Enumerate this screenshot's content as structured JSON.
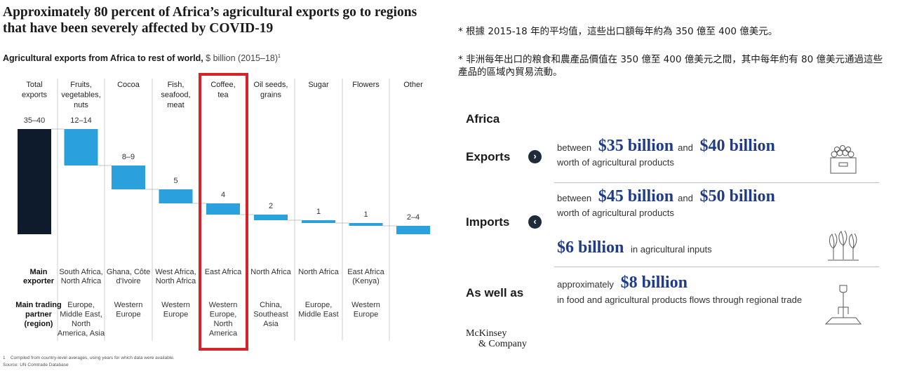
{
  "title": "Approximately 80 percent of Africa’s agricultural exports go to regions that have been severely affected by COVID-19",
  "subtitle_bold": "Agricultural exports from Africa to rest of world,",
  "subtitle_unit": "$ billion (2015–18)",
  "subtitle_sup": "1",
  "chart_data": {
    "type": "bar",
    "subtype": "waterfall",
    "categories": [
      "Total exports",
      "Fruits, vegetables, nuts",
      "Cocoa",
      "Fish, seafood, meat",
      "Coffee, tea",
      "Oil seeds, grains",
      "Sugar",
      "Flowers",
      "Other"
    ],
    "category_lines": [
      [
        "Total",
        "exports"
      ],
      [
        "Fruits,",
        "vegetables,",
        "nuts"
      ],
      [
        "Cocoa"
      ],
      [
        "Fish,",
        "seafood,",
        "meat"
      ],
      [
        "Coffee,",
        "tea"
      ],
      [
        "Oil seeds,",
        "grains"
      ],
      [
        "Sugar"
      ],
      [
        "Flowers"
      ],
      [
        "Other"
      ]
    ],
    "value_labels": [
      "35–40",
      "12–14",
      "8–9",
      "5",
      "4",
      "2",
      "1",
      "1",
      "2–4"
    ],
    "values": [
      37.5,
      13,
      8.5,
      5,
      4,
      2,
      1,
      1,
      3
    ],
    "highlighted_category": "Coffee, tea",
    "colors": {
      "total": "#0e1b2c",
      "segment": "#2aa0dc",
      "highlight_box": "#d7232a"
    },
    "main_exporter_label": [
      "Main",
      "exporter"
    ],
    "main_exporter": [
      [],
      [
        "South Africa,",
        "North Africa"
      ],
      [
        "Ghana, Côte",
        "d'Ivoire"
      ],
      [
        "West Africa,",
        "North Africa"
      ],
      [
        "East Africa"
      ],
      [
        "North Africa"
      ],
      [
        "North Africa"
      ],
      [
        "East Africa",
        "(Kenya)"
      ],
      []
    ],
    "main_partner_label": [
      "Main trading",
      "partner",
      "(region)"
    ],
    "main_partner": [
      [],
      [
        "Europe,",
        "Middle East,",
        "North",
        "America, Asia"
      ],
      [
        "Western",
        "Europe"
      ],
      [
        "Western",
        "Europe"
      ],
      [
        "Western",
        "Europe,",
        "North",
        "America"
      ],
      [
        "China,",
        "Southeast",
        "Asia"
      ],
      [
        "Europe,",
        "Middle East"
      ],
      [
        "Western",
        "Europe"
      ],
      []
    ]
  },
  "footnote_num": "1",
  "footnote": "Compiled from country-level averages, using years for which data were available.",
  "source": "Source: UN Comtrade Database",
  "notes": [
    "* 根據 2015-18 年的平均值，這些出口額每年約為 350 億至 400 億美元。",
    "* 非洲每年出口的粮食和農產品價值在 350 億至 400 億美元之間，其中每年約有 80 億美元通過這些產品的區域內貿易流動。"
  ],
  "infographic": {
    "heading": "Africa",
    "exports": {
      "label": "Exports",
      "pre": "between",
      "value1": "$35 billion",
      "mid": "and",
      "value2": "$40 billion",
      "sub": "worth of agricultural products",
      "icon": "produce-crate-icon"
    },
    "imports": {
      "label": "Imports",
      "pre": "between",
      "value1": "$45 billion",
      "mid": "and",
      "value2": "$50 billion",
      "sub": "worth of agricultural products",
      "inputs_value": "$6 billion",
      "inputs_text": "in agricultural inputs",
      "icon": "crop-plants-icon"
    },
    "as_well_as": {
      "label": "As well as",
      "pre": "approximately",
      "value": "$8 billion",
      "sub": "in food and agricultural products flows through regional trade",
      "icon": "garden-fork-icon"
    }
  },
  "logo": {
    "line1": "McKinsey",
    "line2": "& Company"
  }
}
